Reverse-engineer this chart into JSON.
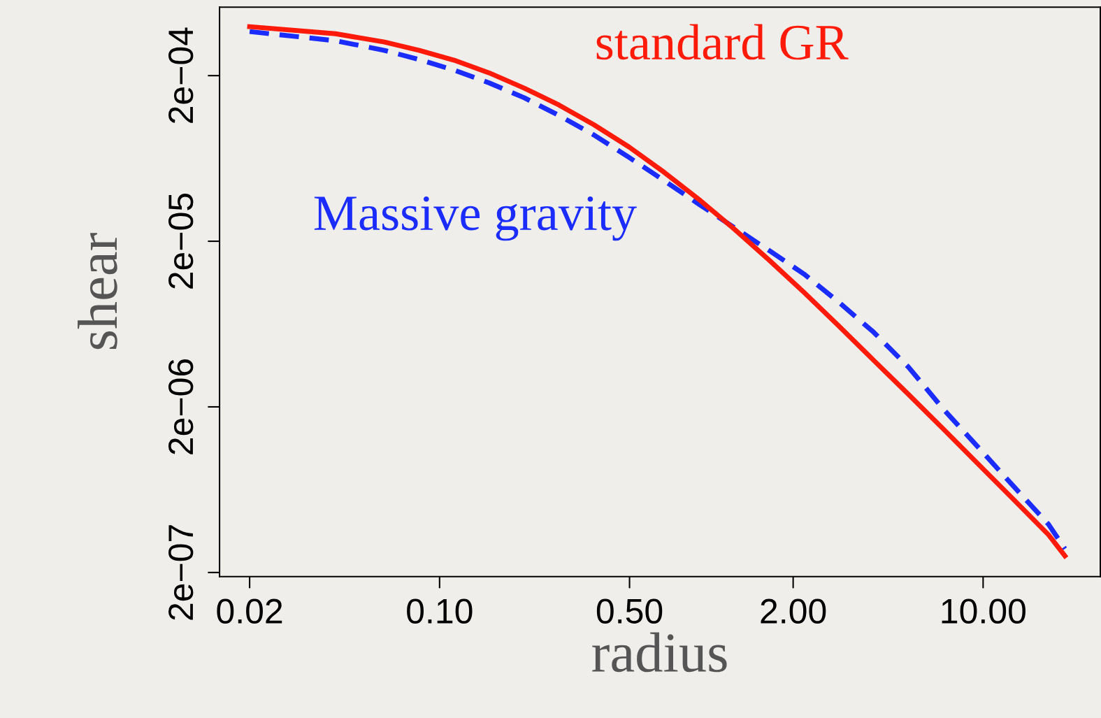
{
  "chart_data": {
    "type": "line",
    "xlabel": "radius",
    "ylabel": "shear",
    "log": "xy",
    "grid": false,
    "legend": false,
    "marker": "none",
    "xlim": [
      0.0155,
      27
    ],
    "ylim": [
      1.89e-07,
      0.000518
    ],
    "xticks": [
      0.02,
      {
        "value": 0.1,
        "label": "0.10"
      },
      {
        "value": 0.5,
        "label": "0.50"
      },
      {
        "value": 2,
        "label": "2.00"
      },
      {
        "value": 10,
        "label": "10.00"
      }
    ],
    "yticks": [
      {
        "value": 2e-07,
        "label": "2e−07"
      },
      {
        "value": 2e-06,
        "label": "2e−06"
      },
      {
        "value": 2e-05,
        "label": "2e−05"
      },
      {
        "value": 0.0002,
        "label": "2e−04"
      }
    ],
    "x": [
      0.02,
      0.0414,
      0.0627,
      0.0843,
      0.113,
      0.152,
      0.205,
      0.275,
      0.37,
      0.498,
      0.669,
      0.9,
      1.21,
      1.63,
      2.19,
      2.94,
      3.95,
      5.31,
      7.14,
      9.6,
      12.9,
      17.4,
      20
    ],
    "series": [
      {
        "name": "standard GR",
        "color": "#ff1a0a",
        "line_style": "solid",
        "values": [
          0.000395,
          0.000358,
          0.000319,
          0.000284,
          0.000248,
          0.000208,
          0.000168,
          0.000133,
          0.000101,
          7.42e-05,
          5.23e-05,
          3.58e-05,
          2.38e-05,
          1.54e-05,
          9.84e-06,
          6.18e-06,
          3.83e-06,
          2.38e-06,
          1.47e-06,
          9.02e-07,
          5.55e-07,
          3.38e-07,
          2.52e-07
        ]
      },
      {
        "name": "Massive gravity",
        "color": "#1a2cff",
        "line_style": "dashed",
        "values": [
          0.000369,
          0.000325,
          0.000284,
          0.00025,
          0.000216,
          0.000181,
          0.000147,
          0.000115,
          8.76e-05,
          6.42e-05,
          4.66e-05,
          3.35e-05,
          2.43e-05,
          1.76e-05,
          1.27e-05,
          8.59e-06,
          5.66e-06,
          3.48e-06,
          1.94e-06,
          1.14e-06,
          6.67e-07,
          3.91e-07,
          2.78e-07
        ]
      }
    ]
  }
}
